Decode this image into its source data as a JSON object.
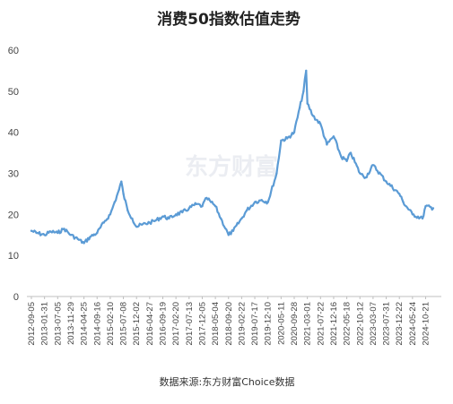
{
  "chart_data": {
    "type": "line",
    "title": "消费50指数估值走势",
    "source": "数据来源:东方财富Choice数据",
    "watermark": "东方财富",
    "ylim": [
      0,
      60
    ],
    "yticks": [
      0,
      10,
      20,
      30,
      40,
      50,
      60
    ],
    "grid": false,
    "line_color": "#5b9bd5",
    "x_tick_labels": [
      "2012-09-05",
      "2013-01-31",
      "2013-07-05",
      "2013-11-29",
      "2014-04-25",
      "2014-09-16",
      "2015-02-10",
      "2015-07-08",
      "2015-12-02",
      "2016-04-27",
      "2016-09-19",
      "2017-02-20",
      "2017-07-13",
      "2017-12-05",
      "2018-05-04",
      "2018-09-20",
      "2019-02-22",
      "2019-07-17",
      "2019-12-10",
      "2020-05-11",
      "2020-09-28",
      "2021-03-01",
      "2021-07-22",
      "2021-12-16",
      "2022-05-18",
      "2022-10-12",
      "2023-03-07",
      "2023-07-31",
      "2023-12-22",
      "2024-05-24",
      "2024-10-21"
    ],
    "series": [
      {
        "x": [
          "2012-09-05",
          "2012-11-01",
          "2013-01-31",
          "2013-04-15",
          "2013-07-05",
          "2013-09-15",
          "2013-11-29",
          "2014-02-15",
          "2014-04-25",
          "2014-07-01",
          "2014-09-16",
          "2014-12-01",
          "2015-02-10",
          "2015-04-01",
          "2015-05-20",
          "2015-06-15",
          "2015-07-08",
          "2015-08-25",
          "2015-10-15",
          "2015-12-02",
          "2016-02-01",
          "2016-04-27",
          "2016-07-01",
          "2016-09-19",
          "2016-12-01",
          "2017-02-20",
          "2017-05-01",
          "2017-07-13",
          "2017-10-01",
          "2017-12-05",
          "2018-01-25",
          "2018-03-15",
          "2018-05-04",
          "2018-07-01",
          "2018-09-20",
          "2018-11-15",
          "2019-02-22",
          "2019-04-20",
          "2019-07-17",
          "2019-10-01",
          "2019-12-10",
          "2020-03-20",
          "2020-05-11",
          "2020-07-15",
          "2020-09-28",
          "2020-12-01",
          "2021-01-15",
          "2021-02-15",
          "2021-03-01",
          "2021-05-01",
          "2021-07-22",
          "2021-10-01",
          "2021-12-16",
          "2022-03-15",
          "2022-05-18",
          "2022-07-01",
          "2022-10-12",
          "2022-12-15",
          "2023-03-07",
          "2023-07-31",
          "2023-12-22",
          "2024-02-05",
          "2024-05-24",
          "2024-09-15",
          "2024-10-21",
          "2025-01-15"
        ],
        "y": [
          16,
          15.5,
          15,
          15.8,
          15.5,
          16.5,
          15,
          14,
          13,
          14.5,
          15.5,
          18,
          20,
          23,
          26,
          28,
          25,
          21,
          19,
          17,
          17.5,
          18,
          18.5,
          19.5,
          19,
          20,
          20.5,
          21.5,
          22.5,
          22,
          24,
          23,
          22,
          19,
          15,
          16,
          19,
          21,
          23,
          23.5,
          23,
          30,
          38,
          38.5,
          40,
          46,
          50,
          55,
          47,
          44,
          42,
          37,
          39,
          34,
          33,
          35,
          30,
          29,
          32,
          28,
          25,
          23,
          20,
          19,
          22,
          21.5
        ]
      }
    ]
  }
}
